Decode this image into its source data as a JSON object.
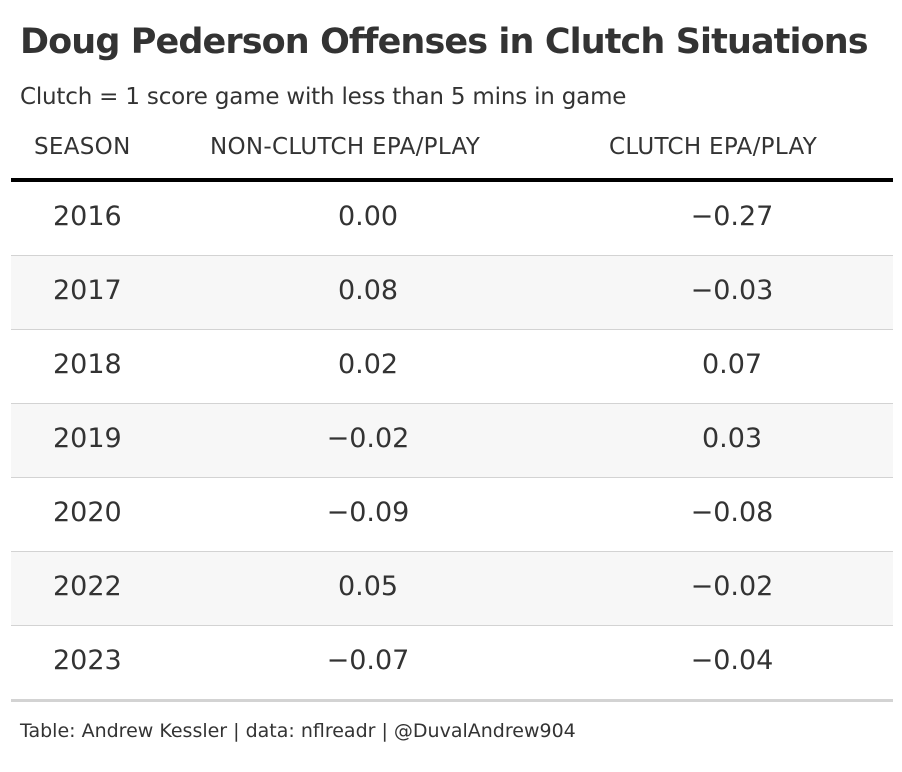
{
  "title": "Doug Pederson Offenses in Clutch Situations",
  "subtitle": "Clutch = 1 score game with less than 5 mins in game",
  "caption": "Table: Andrew Kessler | data: nflreadr | @DuvalAndrew904",
  "chart_data": {
    "type": "table",
    "title": "Doug Pederson Offenses in Clutch Situations",
    "subtitle": "Clutch = 1 score game with less than 5 mins in game",
    "columns": [
      "SEASON",
      "NON-CLUTCH EPA/PLAY",
      "CLUTCH EPA/PLAY"
    ],
    "rows": [
      {
        "season": "2016",
        "non_clutch": "0.00",
        "clutch": "−0.27"
      },
      {
        "season": "2017",
        "non_clutch": "0.08",
        "clutch": "−0.03"
      },
      {
        "season": "2018",
        "non_clutch": "0.02",
        "clutch": "0.07"
      },
      {
        "season": "2019",
        "non_clutch": "−0.02",
        "clutch": "0.03"
      },
      {
        "season": "2020",
        "non_clutch": "−0.09",
        "clutch": "−0.08"
      },
      {
        "season": "2022",
        "non_clutch": "0.05",
        "clutch": "−0.02"
      },
      {
        "season": "2023",
        "non_clutch": "−0.07",
        "clutch": "−0.04"
      }
    ]
  }
}
